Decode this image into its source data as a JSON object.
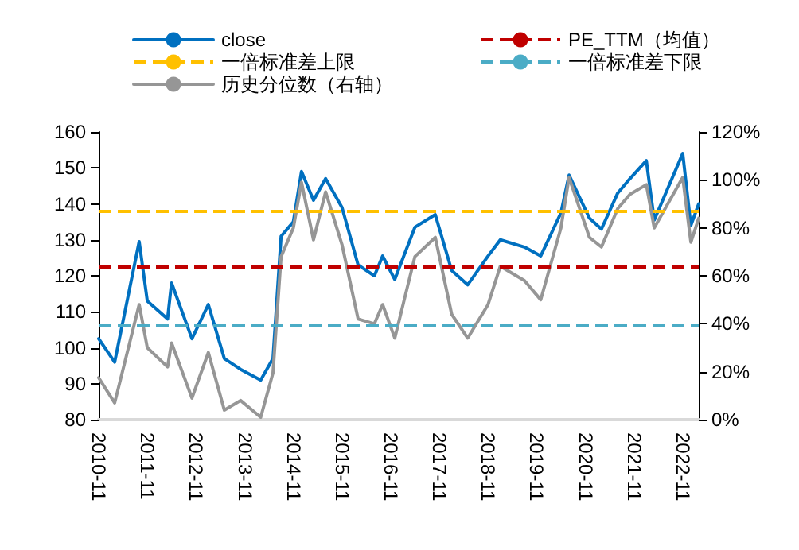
{
  "chart_data": {
    "type": "line",
    "x": [
      "2010-11",
      "2011-03",
      "2011-09",
      "2011-11",
      "2012-04",
      "2012-05",
      "2012-10",
      "2013-02",
      "2013-06",
      "2013-10",
      "2014-03",
      "2014-06",
      "2014-08",
      "2014-11",
      "2015-01",
      "2015-04",
      "2015-07",
      "2015-11",
      "2016-03",
      "2016-07",
      "2016-09",
      "2016-12",
      "2017-05",
      "2017-10",
      "2018-02",
      "2018-06",
      "2018-11",
      "2019-02",
      "2019-08",
      "2019-12",
      "2020-05",
      "2020-07",
      "2020-12",
      "2021-03",
      "2021-07",
      "2021-10",
      "2022-02",
      "2022-04",
      "2022-11",
      "2023-01",
      "2023-03"
    ],
    "series": [
      {
        "name": "close",
        "color": "#0070c0",
        "values": [
          102.5,
          96,
          129.5,
          113,
          108,
          118,
          102.5,
          112,
          97,
          94,
          91,
          97,
          131,
          135,
          149,
          141,
          147,
          139,
          123,
          120,
          125.5,
          119,
          133.5,
          137,
          121.5,
          117.5,
          125.5,
          130,
          128,
          125.5,
          137.5,
          148,
          136,
          133,
          143,
          147,
          152,
          135.5,
          154,
          134,
          140
        ]
      },
      {
        "name": "历史分位数（右轴）",
        "color": "#969696",
        "axis": "y2",
        "values": [
          17.5,
          7,
          48,
          30,
          22,
          32,
          9,
          28,
          4,
          8,
          1,
          19.5,
          68,
          80,
          99,
          75,
          95,
          73,
          42,
          40,
          48,
          34,
          68,
          76,
          44,
          34,
          48,
          64,
          58,
          50,
          80,
          101,
          76,
          72,
          88,
          94,
          98,
          80,
          101,
          74,
          84
        ]
      }
    ],
    "ref_lines": [
      {
        "axis": "y",
        "value": 122.4,
        "label": "PE_TTM（均值）",
        "color": "#c00000",
        "line_style": "dashed"
      },
      {
        "axis": "y",
        "value": 138.2,
        "label": "一倍标准差上限",
        "color": "#ffc000",
        "line_style": "dashed"
      },
      {
        "axis": "y",
        "value": 106.1,
        "label": "一倍标准差下限",
        "color": "#4bacc6",
        "line_style": "dashed"
      }
    ],
    "xlim": [
      "2010-11",
      "2023-03"
    ],
    "xticks": [
      "2010-11",
      "2011-11",
      "2012-11",
      "2013-11",
      "2014-11",
      "2015-11",
      "2016-11",
      "2017-11",
      "2018-11",
      "2019-11",
      "2020-11",
      "2021-11",
      "2022-11"
    ],
    "ylim": [
      80,
      160
    ],
    "yticks": [
      80,
      90,
      100,
      110,
      120,
      130,
      140,
      150,
      160
    ],
    "y2lim": [
      0,
      120
    ],
    "y2ticks": [
      {
        "value": 0,
        "label": "0%"
      },
      {
        "value": 20,
        "label": "20%"
      },
      {
        "value": 40,
        "label": "40%"
      },
      {
        "value": 60,
        "label": "60%"
      },
      {
        "value": 80,
        "label": "80%"
      },
      {
        "value": 100,
        "label": "100%"
      },
      {
        "value": 120,
        "label": "120%"
      }
    ],
    "legend": "top",
    "grid": false,
    "marker": "none",
    "line_style": "solid"
  }
}
